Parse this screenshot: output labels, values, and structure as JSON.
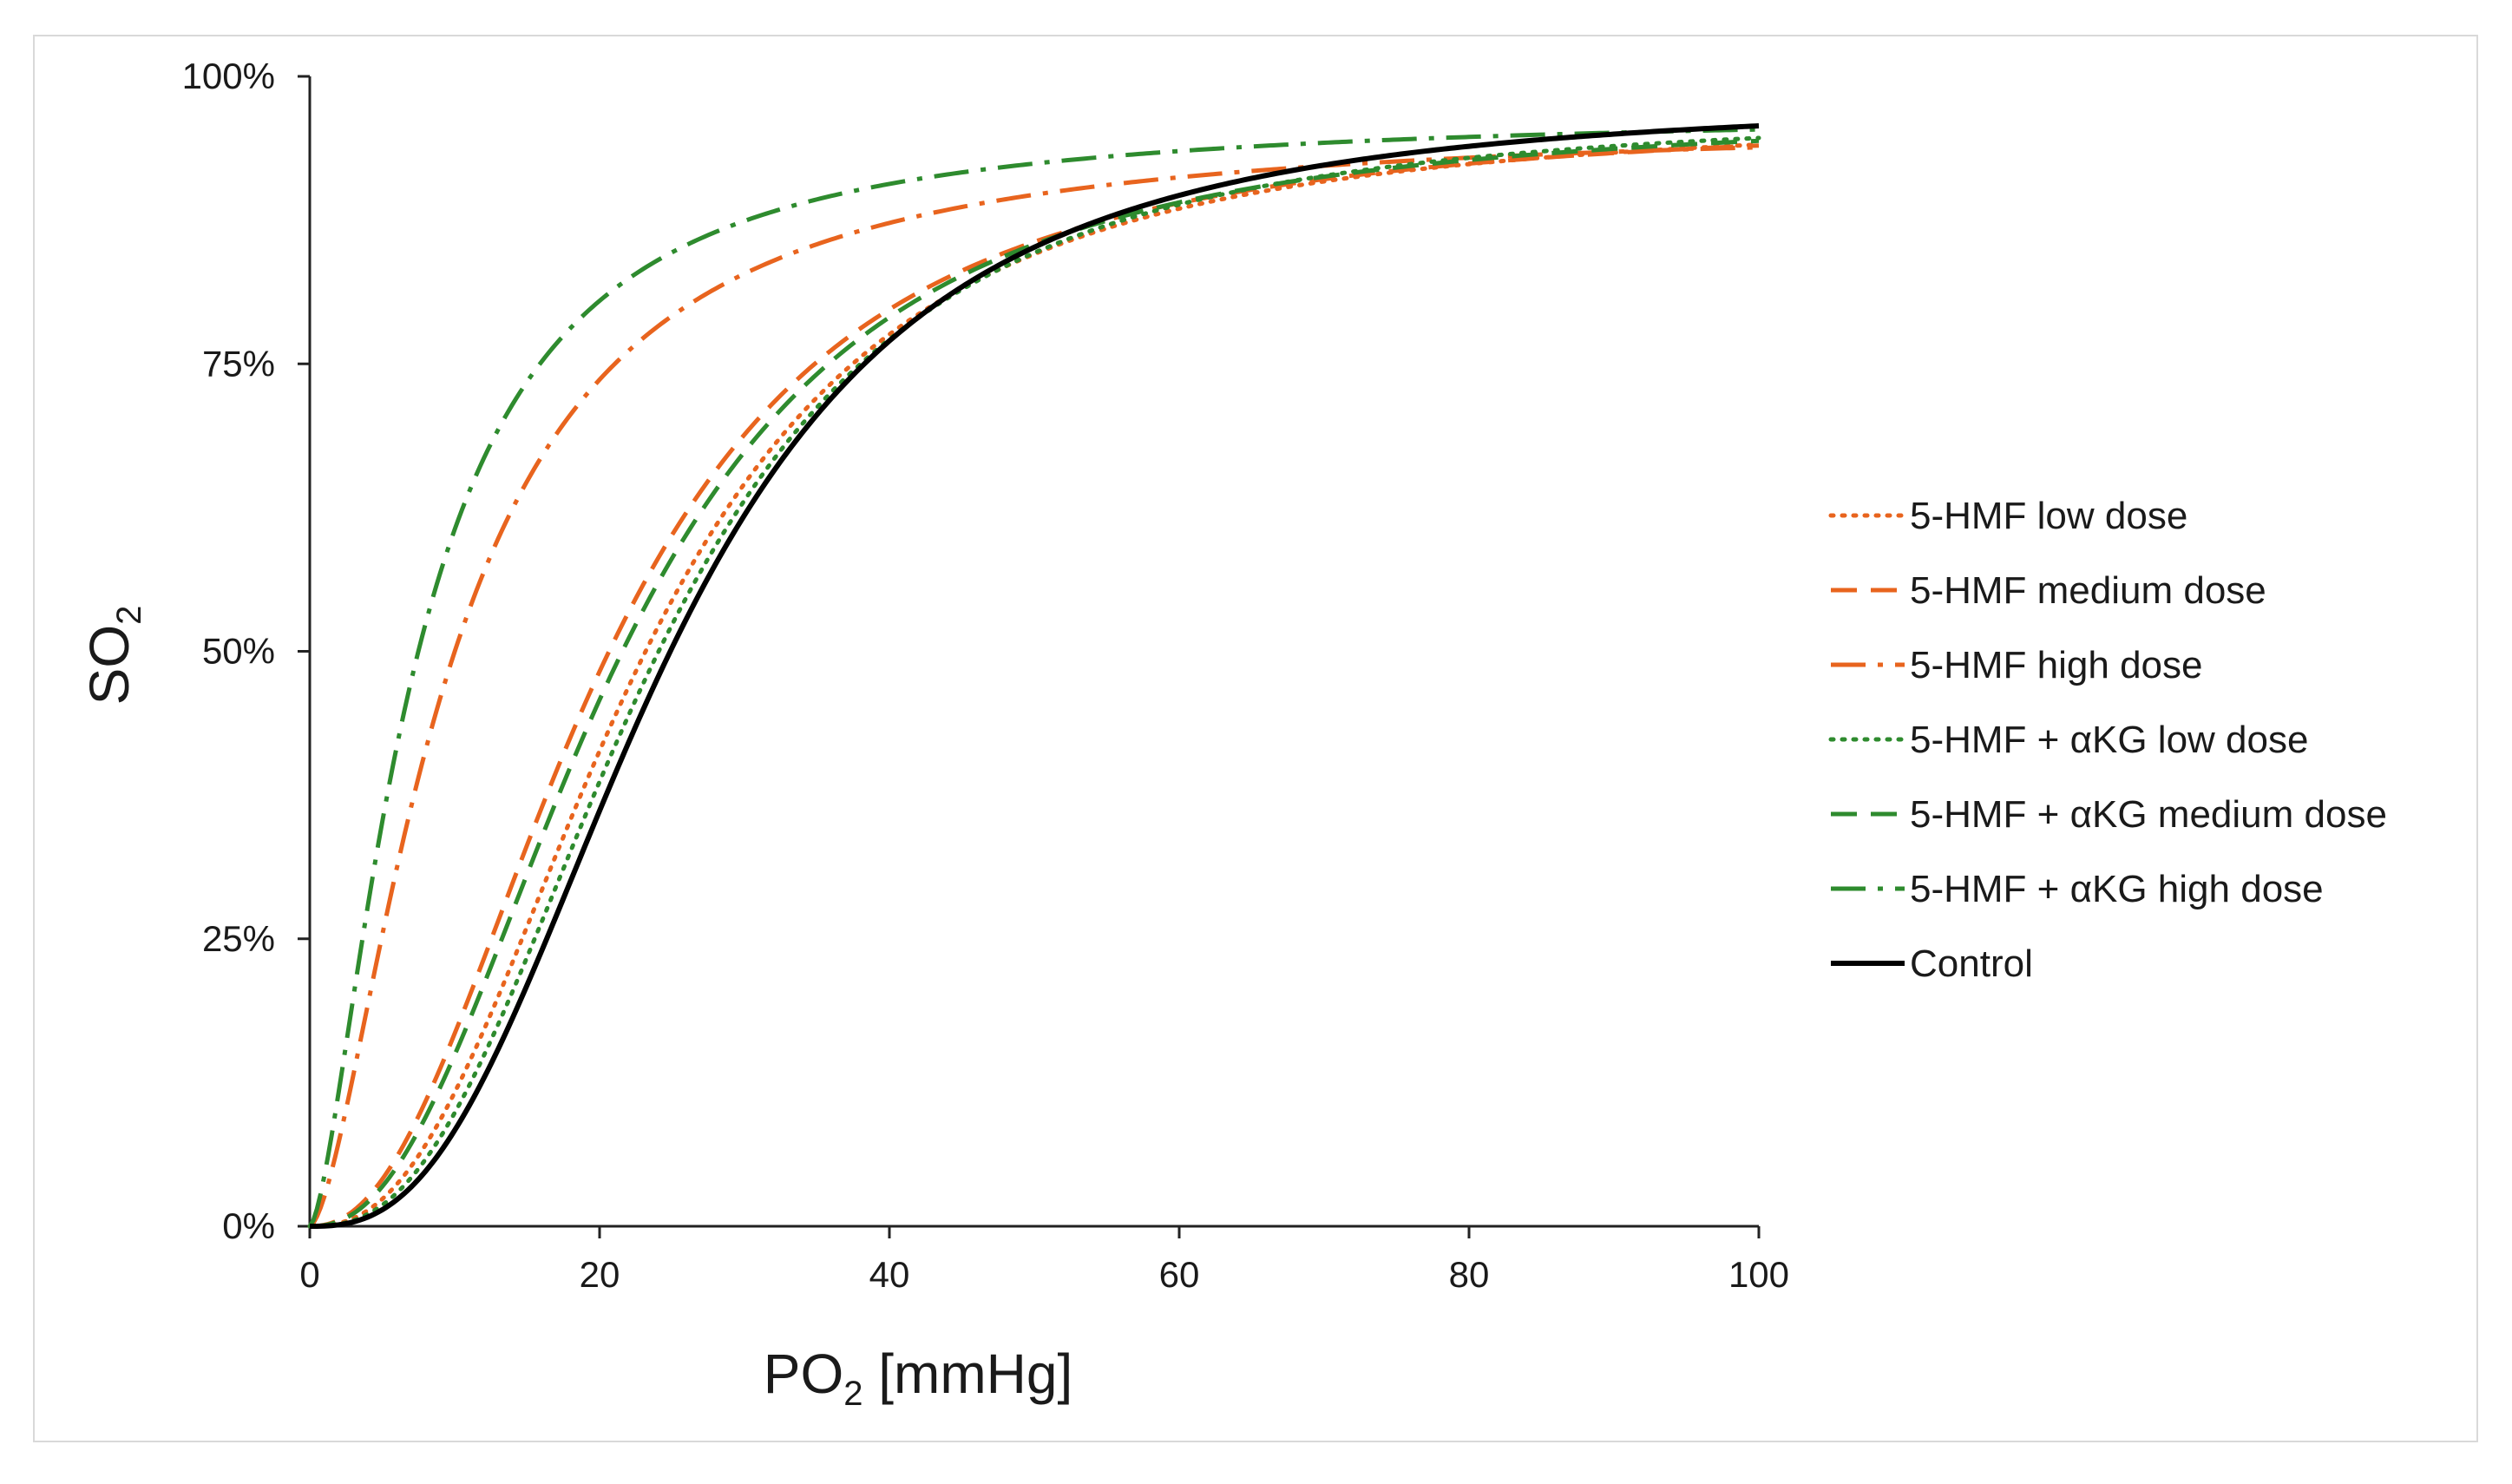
{
  "chart_data": {
    "type": "line",
    "title": "",
    "xlabel": "PO2 [mmHg]",
    "xlabel_main": "PO",
    "xlabel_sub": "2",
    "xlabel_rest": " [mmHg]",
    "ylabel": "SO2",
    "ylabel_main": "SO",
    "ylabel_sub": "2",
    "xlim": [
      0,
      100
    ],
    "ylim": [
      0,
      100
    ],
    "x_ticks": [
      0,
      20,
      40,
      60,
      80,
      100
    ],
    "x_tick_labels": [
      "0",
      "20",
      "40",
      "60",
      "80",
      "100"
    ],
    "y_ticks": [
      0,
      25,
      50,
      75,
      100
    ],
    "y_tick_labels": [
      "0%",
      "25%",
      "50%",
      "75%",
      "100%"
    ],
    "grid": false,
    "legend_position": "right",
    "series": [
      {
        "name": "5-HMF low dose",
        "color": "#E8641E",
        "dash": "dotted",
        "p50": 22.5,
        "n": 2.45,
        "max": 96.5
      },
      {
        "name": "5-HMF medium dose",
        "color": "#E8641E",
        "dash": "dashed",
        "p50": 20.0,
        "n": 2.25,
        "max": 96.5
      },
      {
        "name": "5-HMF high dose",
        "color": "#E8641E",
        "dash": "dashdot",
        "p50": 9.5,
        "n": 1.6,
        "max": 96.0
      },
      {
        "name": "5-HMF + αKG low dose",
        "color": "#2E8B2E",
        "dash": "dotted",
        "p50": 23.5,
        "n": 2.55,
        "max": 97.0
      },
      {
        "name": "5-HMF + αKG medium dose",
        "color": "#2E8B2E",
        "dash": "dashed",
        "p50": 21.0,
        "n": 2.3,
        "max": 97.0
      },
      {
        "name": "5-HMF + αKG high dose",
        "color": "#2E8B2E",
        "dash": "dashdot",
        "p50": 7.2,
        "n": 1.55,
        "max": 97.0
      },
      {
        "name": "Control",
        "color": "#000000",
        "dash": "solid",
        "p50": 24.5,
        "n": 2.65,
        "max": 98.0
      }
    ]
  }
}
